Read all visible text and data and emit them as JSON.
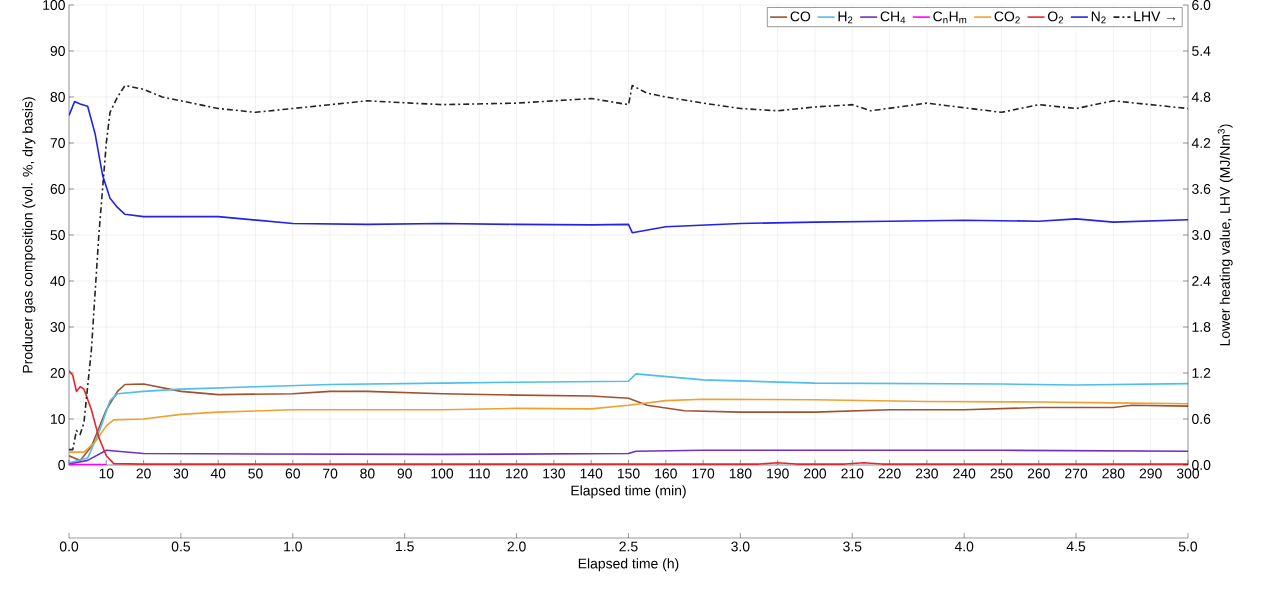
{
  "chart_data": {
    "type": "line",
    "xlabel": "Elapsed time (min)",
    "ylabel": "Producer gas composition (vol. %, dry basis)",
    "y2label": "Lower heating value, LHV (MJ/Nm$^{3}$)",
    "x2label": "Elapsed time (h)",
    "xlim": [
      0,
      300
    ],
    "xticks": [
      {
        "value": 0,
        "label": null
      },
      10,
      20,
      30,
      40,
      50,
      60,
      70,
      80,
      90,
      100,
      110,
      120,
      130,
      140,
      150,
      160,
      170,
      180,
      190,
      200,
      210,
      220,
      230,
      240,
      250,
      260,
      270,
      280,
      290,
      300
    ],
    "ylim": [
      0,
      100
    ],
    "yticks": [
      0,
      10,
      20,
      30,
      40,
      50,
      60,
      70,
      80,
      90,
      100
    ],
    "y2lim": [
      0,
      6
    ],
    "y2ticks": [
      {
        "value": 0,
        "label": "0.0"
      },
      {
        "value": 0.6,
        "label": "0.6"
      },
      {
        "value": 1.2,
        "label": "1.2"
      },
      {
        "value": 1.8,
        "label": "1.8"
      },
      {
        "value": 2.4,
        "label": "2.4"
      },
      {
        "value": 3,
        "label": "3.0"
      },
      {
        "value": 3.6,
        "label": "3.6"
      },
      {
        "value": 4.2,
        "label": "4.2"
      },
      {
        "value": 4.8,
        "label": "4.8"
      },
      {
        "value": 5.4,
        "label": "5.4"
      },
      {
        "value": 6,
        "label": "6.0"
      }
    ],
    "x2lim": [
      0,
      5
    ],
    "x2ticks": [
      {
        "value": 0,
        "label": "0.0"
      },
      {
        "value": 0.5,
        "label": "0.5"
      },
      {
        "value": 1,
        "label": "1.0"
      },
      {
        "value": 1.5,
        "label": "1.5"
      },
      {
        "value": 2,
        "label": "2.0"
      },
      {
        "value": 2.5,
        "label": "2.5"
      },
      {
        "value": 3,
        "label": "3.0"
      },
      {
        "value": 3.5,
        "label": "3.5"
      },
      {
        "value": 4,
        "label": "4.0"
      },
      {
        "value": 4.5,
        "label": "4.5"
      },
      {
        "value": 5,
        "label": "5.0"
      }
    ],
    "grid": true,
    "legend": "top right",
    "series": [
      {
        "name": "CO",
        "color": "#a0522d",
        "x": [
          0,
          3,
          6,
          10,
          13,
          15,
          20,
          30,
          40,
          60,
          70,
          80,
          100,
          120,
          140,
          150,
          155,
          165,
          180,
          200,
          220,
          240,
          260,
          280,
          285,
          300
        ],
        "values": [
          2,
          1,
          4,
          12,
          16,
          17.5,
          17.6,
          16,
          15.3,
          15.5,
          16,
          16,
          15.5,
          15.2,
          15,
          14.5,
          13,
          11.8,
          11.5,
          11.5,
          12,
          12,
          12.5,
          12.5,
          13,
          12.8
        ]
      },
      {
        "name": "H$_{2}$",
        "color": "#4dbeee",
        "x": [
          0,
          5,
          8,
          11,
          13,
          20,
          30,
          50,
          70,
          100,
          120,
          150,
          152,
          170,
          200,
          250,
          270,
          300
        ],
        "values": [
          0.5,
          1.5,
          7,
          14,
          15.5,
          16,
          16.5,
          17,
          17.5,
          17.8,
          18,
          18.2,
          19.8,
          18.5,
          17.8,
          17.6,
          17.4,
          17.7
        ]
      },
      {
        "name": "CH$_{4}$",
        "color": "#7030c0",
        "x": [
          0,
          5,
          10,
          13,
          20,
          50,
          100,
          150,
          152,
          170,
          250,
          300
        ],
        "values": [
          0.2,
          1,
          3.2,
          3,
          2.5,
          2.4,
          2.3,
          2.5,
          3,
          3.2,
          3.2,
          3
        ]
      },
      {
        "name": "C$_{n}$H$_{m}$",
        "color": "#ff00ff",
        "x": [
          0,
          5,
          10
        ],
        "values": [
          0.1,
          0.1,
          0.1
        ]
      },
      {
        "name": "CO$_{2}$",
        "color": "#f0a030",
        "x": [
          0,
          4,
          7,
          10,
          12,
          20,
          30,
          40,
          60,
          100,
          120,
          140,
          150,
          160,
          170,
          200,
          230,
          260,
          280,
          300
        ],
        "values": [
          2.8,
          2.8,
          5,
          8.5,
          9.8,
          10,
          11,
          11.5,
          12,
          12,
          12.3,
          12.2,
          13,
          14,
          14.3,
          14.2,
          13.8,
          13.7,
          13.5,
          13.3
        ]
      },
      {
        "name": "O$_{2}$",
        "color": "#e6262b",
        "x": [
          0,
          1,
          2,
          3,
          4,
          6,
          8,
          10,
          12,
          20,
          100,
          185,
          190,
          195,
          208,
          213,
          218,
          300
        ],
        "values": [
          20.5,
          19.5,
          16,
          17,
          16.5,
          12,
          6,
          2,
          0.3,
          0.2,
          0.2,
          0.2,
          0.5,
          0.2,
          0.2,
          0.5,
          0.2,
          0.2
        ]
      },
      {
        "name": "N$_{2}$",
        "color": "#2222e8",
        "x": [
          0,
          1.5,
          3,
          5,
          7,
          9,
          11,
          13,
          15,
          20,
          40,
          60,
          80,
          100,
          120,
          140,
          150,
          151,
          160,
          180,
          200,
          220,
          240,
          260,
          270,
          280,
          300
        ],
        "values": [
          76,
          79,
          78.5,
          78,
          72,
          63,
          58,
          56,
          54.5,
          54,
          54,
          52.5,
          52.3,
          52.5,
          52.3,
          52.2,
          52.3,
          50.5,
          51.8,
          52.5,
          52.8,
          53,
          53.2,
          53,
          53.5,
          52.8,
          53.3
        ]
      },
      {
        "name": "LHV →",
        "color": "#222222",
        "axis": "y2",
        "line_style": "dashdot",
        "x": [
          0,
          1,
          2,
          3,
          4,
          6,
          8,
          10,
          11,
          13,
          15,
          20,
          25,
          30,
          40,
          50,
          60,
          70,
          80,
          100,
          120,
          140,
          150,
          151,
          155,
          160,
          170,
          180,
          190,
          200,
          210,
          215,
          230,
          250,
          260,
          270,
          280,
          300
        ],
        "values": [
          0.2,
          0.2,
          0.45,
          0.4,
          0.55,
          1.5,
          3,
          4.2,
          4.6,
          4.8,
          4.95,
          4.9,
          4.8,
          4.75,
          4.65,
          4.6,
          4.65,
          4.7,
          4.75,
          4.7,
          4.72,
          4.78,
          4.7,
          4.95,
          4.85,
          4.8,
          4.72,
          4.65,
          4.62,
          4.67,
          4.7,
          4.62,
          4.72,
          4.6,
          4.7,
          4.65,
          4.75,
          4.65
        ]
      }
    ]
  }
}
